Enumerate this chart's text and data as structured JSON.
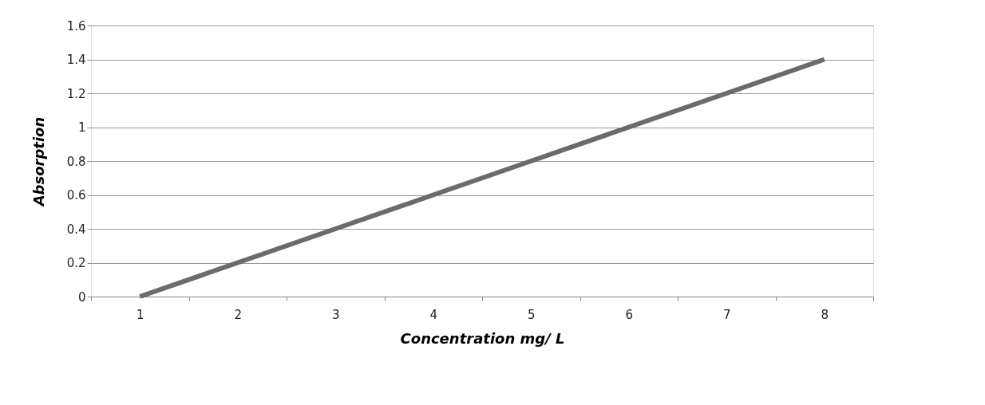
{
  "chart_data": {
    "type": "line",
    "xlabel": "Concentration mg/ L",
    "ylabel": "Absorption",
    "categories": [
      "1",
      "2",
      "3",
      "4",
      "5",
      "6",
      "7",
      "8"
    ],
    "series": [
      {
        "color": "#6b6b6b",
        "values": [
          0,
          0.2,
          0.4,
          0.6,
          0.8,
          1.0,
          1.2,
          1.4
        ]
      }
    ],
    "ylim": [
      0,
      1.6
    ],
    "yticks": [
      0,
      0.2,
      0.4,
      0.6,
      0.8,
      1,
      1.2,
      1.4,
      1.6
    ],
    "grid": "y",
    "marker": "none",
    "line_style": "solid"
  }
}
